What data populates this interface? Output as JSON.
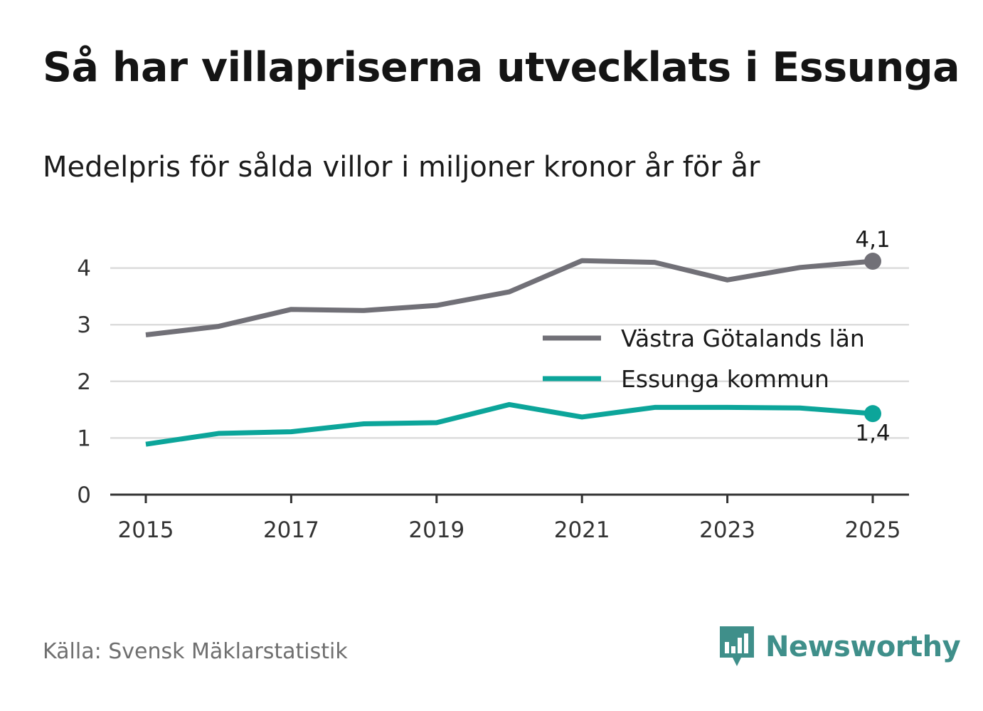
{
  "title": "Så har villapriserna utvecklats i Essunga",
  "subtitle": "Medelpris för sålda villor i miljoner kronor år för år",
  "source": "Källa: Svensk Mäklarstatistik",
  "brand": {
    "name": "Newsworthy",
    "logo_icon": "bar-chart-speech-bubble-icon",
    "color": "#3f8f8a"
  },
  "chart_data": {
    "type": "line",
    "title": "Så har villapriserna utvecklats i Essunga",
    "subtitle": "Medelpris för sålda villor i miljoner kronor år för år",
    "xlabel": "",
    "ylabel": "",
    "x": [
      2015,
      2016,
      2017,
      2018,
      2019,
      2020,
      2021,
      2022,
      2023,
      2024,
      2025
    ],
    "xticks": [
      "2015",
      "2017",
      "2019",
      "2021",
      "2023",
      "2025"
    ],
    "yticks": [
      "0",
      "1",
      "2",
      "3",
      "4"
    ],
    "ylim": [
      0,
      4.4
    ],
    "xlim": [
      2014.5,
      2025.5
    ],
    "grid": true,
    "legend_position": "right",
    "series": [
      {
        "name": "Västra Götalands län",
        "color": "#717077",
        "values": [
          2.82,
          2.97,
          3.27,
          3.25,
          3.34,
          3.58,
          4.13,
          4.1,
          3.79,
          4.01,
          4.12
        ],
        "end_label": "4,1"
      },
      {
        "name": "Essunga kommun",
        "color": "#0ca59a",
        "values": [
          0.89,
          1.08,
          1.11,
          1.25,
          1.27,
          1.59,
          1.37,
          1.54,
          1.54,
          1.53,
          1.43
        ],
        "end_label": "1,4"
      }
    ]
  }
}
